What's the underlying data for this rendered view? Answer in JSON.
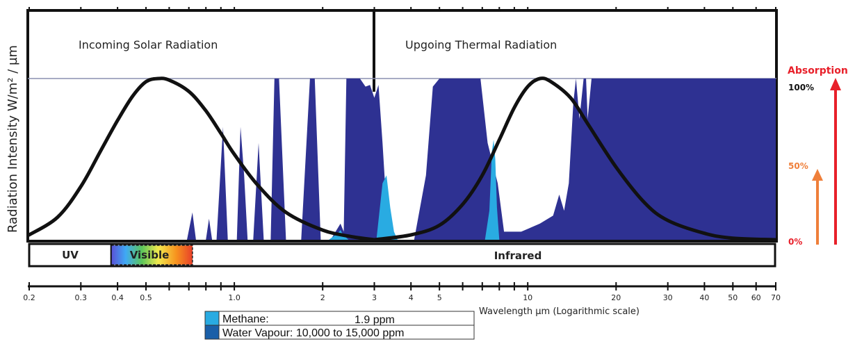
{
  "chart_data": {
    "type": "area",
    "ylabel": "Radiation Intensity W/m² / µm",
    "xlabel": "Wavelength µm (Logarithmic scale)",
    "x_scale": "log",
    "xlim": [
      0.2,
      70
    ],
    "x_ticks": [
      0.2,
      0.3,
      0.4,
      0.5,
      1.0,
      2,
      3,
      4,
      5,
      10,
      20,
      30,
      40,
      50,
      60,
      70
    ],
    "x_tick_labels": [
      "0.2",
      "0.3",
      "0.4",
      "0.5",
      "1.0",
      "2",
      "3",
      "4",
      "5",
      "10",
      "20",
      "30",
      "40",
      "50",
      "60",
      "70"
    ],
    "section_labels": {
      "left": "Incoming Solar Radiation",
      "right": "Upgoing Thermal Radiation"
    },
    "bands": [
      {
        "label": "UV",
        "x_start": 0.2,
        "x_end": 0.38
      },
      {
        "label": "Visible",
        "x_start": 0.38,
        "x_end": 0.72
      },
      {
        "label": "Infrared",
        "x_start": 0.72,
        "x_end": 70
      }
    ],
    "absorption_axis": {
      "title": "Absorption",
      "ticks": [
        {
          "label": "100%",
          "value": 100,
          "color": "#111111"
        },
        {
          "label": "50%",
          "value": 50,
          "color": "#ef7f3a"
        },
        {
          "label": "0%",
          "value": 0,
          "color": "#e8202a"
        }
      ]
    },
    "curves": {
      "solar": [
        [
          0.2,
          3
        ],
        [
          0.25,
          14
        ],
        [
          0.3,
          33
        ],
        [
          0.35,
          55
        ],
        [
          0.4,
          74
        ],
        [
          0.45,
          89
        ],
        [
          0.5,
          98
        ],
        [
          0.55,
          100
        ],
        [
          0.6,
          99
        ],
        [
          0.7,
          92
        ],
        [
          0.8,
          80
        ],
        [
          0.9,
          66
        ],
        [
          1.0,
          53
        ],
        [
          1.2,
          34
        ],
        [
          1.5,
          17
        ],
        [
          2.0,
          6
        ],
        [
          2.5,
          2
        ],
        [
          3.0,
          0
        ]
      ],
      "thermal": [
        [
          3.0,
          0
        ],
        [
          4.0,
          3
        ],
        [
          5.0,
          9
        ],
        [
          6.0,
          22
        ],
        [
          7.0,
          40
        ],
        [
          8.0,
          62
        ],
        [
          9.0,
          82
        ],
        [
          10,
          95
        ],
        [
          11,
          100
        ],
        [
          12,
          98
        ],
        [
          14,
          88
        ],
        [
          16,
          72
        ],
        [
          20,
          45
        ],
        [
          25,
          23
        ],
        [
          30,
          12
        ],
        [
          40,
          4
        ],
        [
          50,
          1
        ],
        [
          70,
          0
        ]
      ]
    },
    "series": [
      {
        "name": "Water Vapour: 10,000 to 15,000 ppm",
        "color": "#2e3192",
        "points": [
          [
            0.69,
            0
          ],
          [
            0.72,
            17
          ],
          [
            0.74,
            0
          ],
          [
            0.8,
            0
          ],
          [
            0.82,
            13
          ],
          [
            0.84,
            0
          ],
          [
            0.87,
            0
          ],
          [
            0.915,
            70
          ],
          [
            0.95,
            0
          ],
          [
            1.02,
            0
          ],
          [
            1.05,
            70
          ],
          [
            1.08,
            40
          ],
          [
            1.11,
            0
          ],
          [
            1.16,
            0
          ],
          [
            1.21,
            60
          ],
          [
            1.26,
            0
          ],
          [
            1.33,
            0
          ],
          [
            1.37,
            100
          ],
          [
            1.42,
            100
          ],
          [
            1.5,
            0
          ],
          [
            1.69,
            0
          ],
          [
            1.81,
            100
          ],
          [
            1.88,
            100
          ],
          [
            1.97,
            0
          ],
          [
            2.13,
            0
          ],
          [
            2.3,
            10
          ],
          [
            2.36,
            5
          ],
          [
            2.41,
            100
          ],
          [
            2.6,
            100
          ],
          [
            2.68,
            100
          ],
          [
            2.8,
            95
          ],
          [
            2.9,
            96
          ],
          [
            3.0,
            88
          ],
          [
            3.1,
            96
          ],
          [
            3.2,
            60
          ],
          [
            3.3,
            20
          ],
          [
            3.5,
            0
          ],
          [
            4.1,
            0
          ],
          [
            4.5,
            40
          ],
          [
            4.75,
            95
          ],
          [
            5.0,
            100
          ],
          [
            5.5,
            100
          ],
          [
            6.0,
            100
          ],
          [
            6.5,
            100
          ],
          [
            6.9,
            100
          ],
          [
            7.3,
            60
          ],
          [
            7.9,
            35
          ],
          [
            8.3,
            5
          ],
          [
            9.5,
            5
          ],
          [
            11.0,
            10
          ],
          [
            12.2,
            15
          ],
          [
            12.8,
            28
          ],
          [
            13.3,
            18
          ],
          [
            13.8,
            35
          ],
          [
            14.3,
            85
          ],
          [
            14.6,
            100
          ],
          [
            15.0,
            75
          ],
          [
            15.5,
            100
          ],
          [
            15.8,
            100
          ],
          [
            16.0,
            75
          ],
          [
            16.5,
            100
          ],
          [
            70,
            100
          ]
        ]
      },
      {
        "name": "Methane: 1.9 ppm",
        "color": "#29abe2",
        "points": [
          [
            2.1,
            0
          ],
          [
            2.25,
            4
          ],
          [
            2.3,
            6
          ],
          [
            2.35,
            3
          ],
          [
            2.45,
            0
          ],
          [
            3.05,
            0
          ],
          [
            3.2,
            35
          ],
          [
            3.3,
            40
          ],
          [
            3.4,
            20
          ],
          [
            3.5,
            5
          ],
          [
            3.6,
            0
          ],
          [
            7.15,
            0
          ],
          [
            7.4,
            18
          ],
          [
            7.55,
            55
          ],
          [
            7.65,
            62
          ],
          [
            7.75,
            50
          ],
          [
            7.85,
            20
          ],
          [
            8.0,
            0
          ]
        ]
      }
    ],
    "legend": [
      {
        "color": "#29abe2",
        "label": "Methane:",
        "value": "1.9 ppm"
      },
      {
        "color": "#1a5fa8",
        "label": "Water Vapour: 10,000 to 15,000 ppm",
        "value": ""
      }
    ]
  }
}
